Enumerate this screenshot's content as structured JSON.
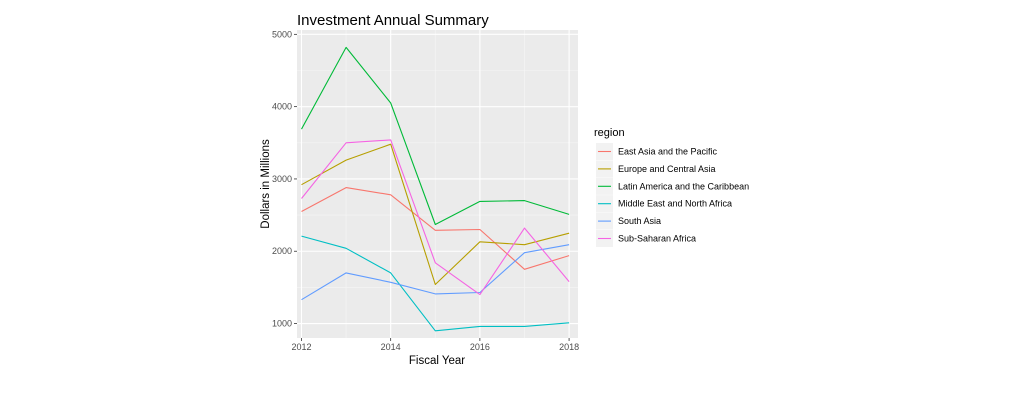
{
  "chart_data": {
    "type": "line",
    "title": "Investment Annual Summary",
    "xlabel": "Fiscal Year",
    "ylabel": "Dollars in Millions",
    "x": [
      2012,
      2013,
      2014,
      2015,
      2016,
      2017,
      2018
    ],
    "x_ticks": [
      "2012",
      "2014",
      "2016",
      "2018"
    ],
    "y_ticks": [
      "1000",
      "2000",
      "3000",
      "4000",
      "5000"
    ],
    "xlim": [
      2011.9,
      2018.2
    ],
    "ylim": [
      800,
      5060
    ],
    "grid": true,
    "legend_title": "region",
    "legend_position": "right",
    "series": [
      {
        "name": "East Asia and the Pacific",
        "color": "#F8766D",
        "values": [
          2550,
          2880,
          2780,
          2290,
          2300,
          1750,
          1940
        ]
      },
      {
        "name": "Europe and Central Asia",
        "color": "#B79F00",
        "values": [
          2920,
          3260,
          3480,
          1540,
          2130,
          2090,
          2250
        ]
      },
      {
        "name": "Latin America and the Caribbean",
        "color": "#00BA38",
        "values": [
          3690,
          4820,
          4050,
          2370,
          2690,
          2700,
          2510
        ]
      },
      {
        "name": "Middle East and North Africa",
        "color": "#00BFC4",
        "values": [
          2210,
          2040,
          1700,
          900,
          960,
          960,
          1010
        ]
      },
      {
        "name": "South Asia",
        "color": "#619CFF",
        "values": [
          1330,
          1700,
          1570,
          1410,
          1430,
          1980,
          2090
        ]
      },
      {
        "name": "Sub-Saharan Africa",
        "color": "#F564E3",
        "values": [
          2730,
          3500,
          3540,
          1840,
          1400,
          2320,
          1580
        ]
      }
    ]
  }
}
